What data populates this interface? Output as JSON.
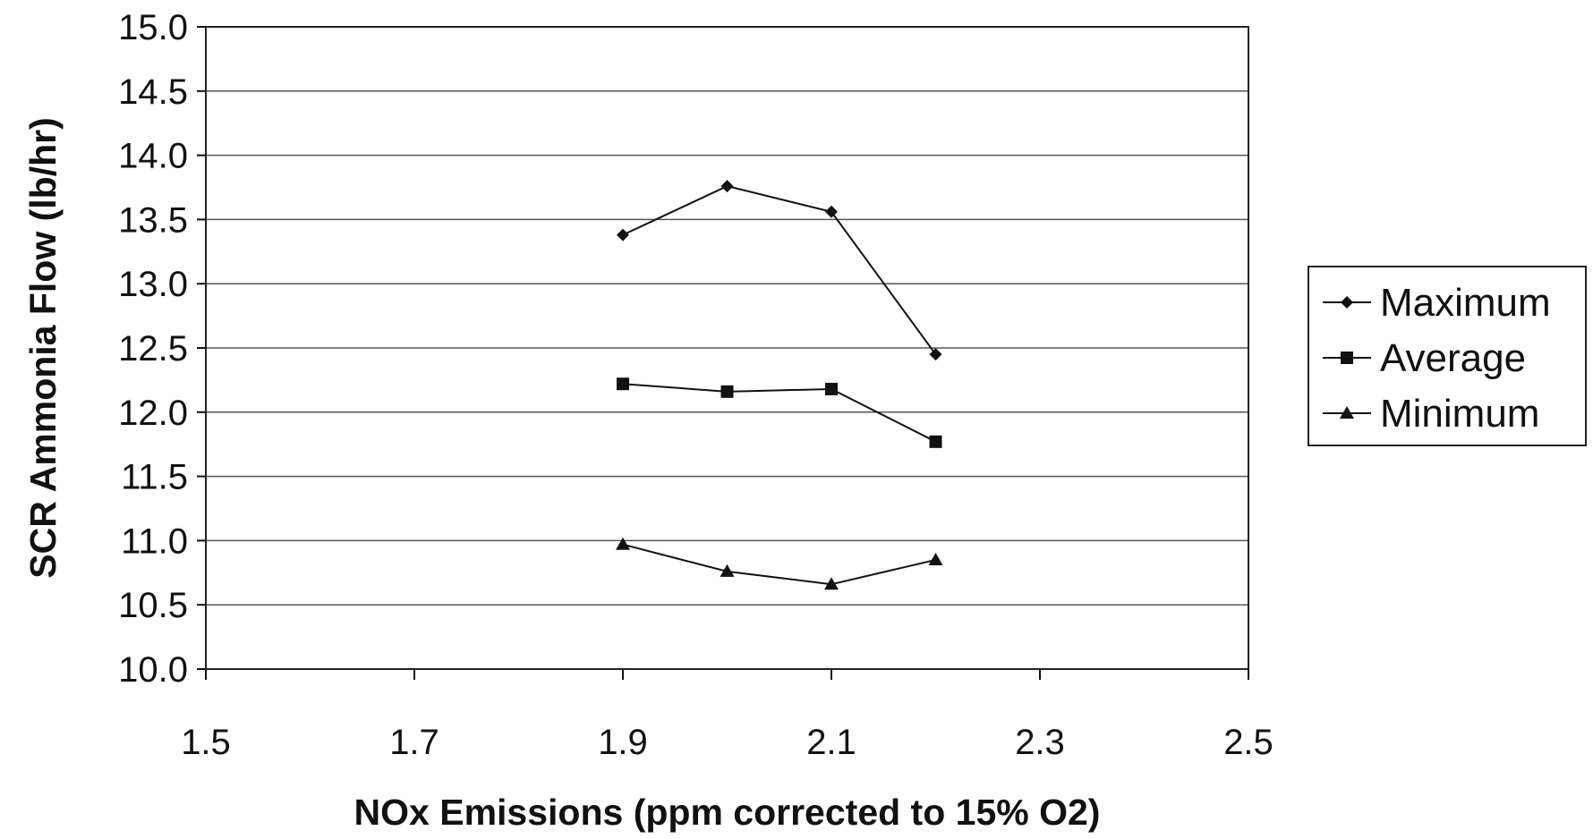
{
  "chart_data": {
    "type": "line",
    "title": "",
    "xlabel": "NOx Emissions (ppm corrected to 15% O2)",
    "ylabel": "SCR Ammonia Flow (lb/hr)",
    "xlim": [
      1.5,
      2.5
    ],
    "ylim": [
      10.0,
      15.0
    ],
    "x_ticks": [
      "1.5",
      "1.7",
      "1.9",
      "2.1",
      "2.3",
      "2.5"
    ],
    "y_ticks": [
      "10.0",
      "10.5",
      "11.0",
      "11.5",
      "12.0",
      "12.5",
      "13.0",
      "13.5",
      "14.0",
      "14.5",
      "15.0"
    ],
    "grid": "horizontal",
    "legend_position": "right",
    "series": [
      {
        "name": "Maximum",
        "marker": "diamond",
        "color": "#111111",
        "points": [
          [
            1.9,
            13.38
          ],
          [
            2.0,
            13.76
          ],
          [
            2.1,
            13.56
          ],
          [
            2.2,
            12.45
          ]
        ]
      },
      {
        "name": "Average",
        "marker": "square",
        "color": "#111111",
        "points": [
          [
            1.9,
            12.22
          ],
          [
            2.0,
            12.16
          ],
          [
            2.1,
            12.18
          ],
          [
            2.2,
            11.77
          ]
        ]
      },
      {
        "name": "Minimum",
        "marker": "triangle",
        "color": "#111111",
        "points": [
          [
            1.9,
            10.97
          ],
          [
            2.0,
            10.76
          ],
          [
            2.1,
            10.66
          ],
          [
            2.2,
            10.85
          ]
        ]
      }
    ]
  }
}
